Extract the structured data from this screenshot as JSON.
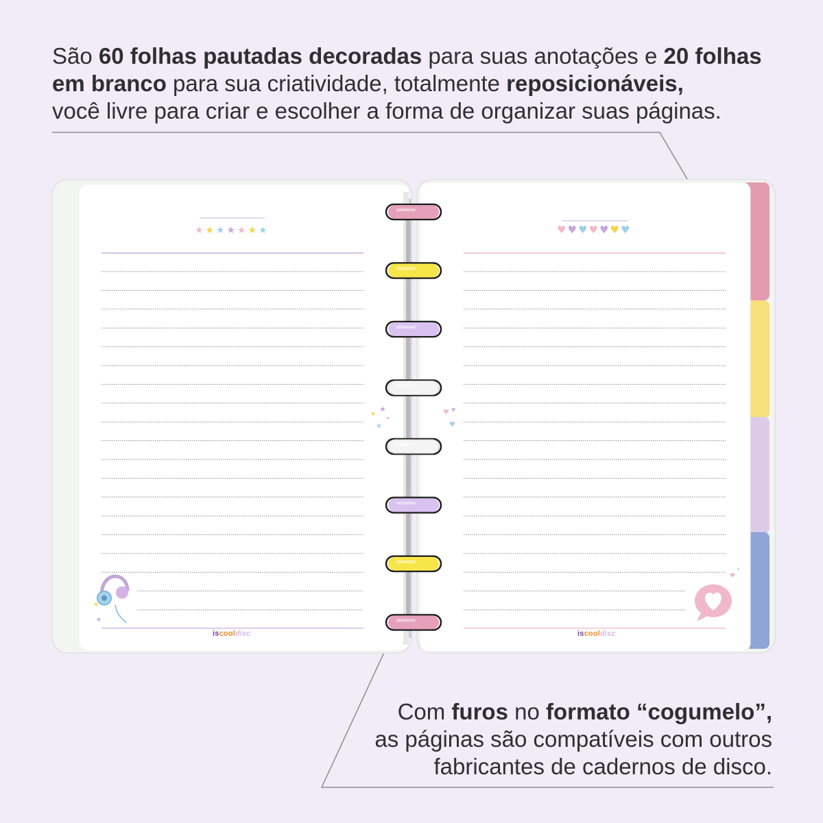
{
  "top_caption": {
    "line1": [
      {
        "text": "São ",
        "bold": false
      },
      {
        "text": "60 folhas pautadas decoradas",
        "bold": true
      },
      {
        "text": " para suas anotações e ",
        "bold": false
      },
      {
        "text": "20 folhas",
        "bold": true
      }
    ],
    "line2": [
      {
        "text": "em branco",
        "bold": true
      },
      {
        "text": " para sua criatividade, totalmente ",
        "bold": false
      },
      {
        "text": "reposicionáveis,",
        "bold": true
      }
    ],
    "line3": [
      {
        "text": "você livre para criar e escolher a forma de organizar suas páginas.",
        "bold": false
      }
    ]
  },
  "bottom_caption": {
    "line1": [
      {
        "text": "Com ",
        "bold": false
      },
      {
        "text": "furos",
        "bold": true
      },
      {
        "text": " no ",
        "bold": false
      },
      {
        "text": "formato “cogumelo”,",
        "bold": true
      }
    ],
    "line2": [
      {
        "text": "as páginas são compatíveis com outros",
        "bold": false
      }
    ],
    "line3": [
      {
        "text": "fabricantes de cadernos de disco.",
        "bold": false
      }
    ]
  },
  "brand_logo": {
    "is": "is",
    "cool": "cool",
    "disc": "disc"
  },
  "colors": {
    "background": "#f1ecf8",
    "callout_dot": "#e0819f",
    "callout_line": "#8c8c8c",
    "disc_pink": "#e6a0b9",
    "disc_yellow": "#f7e64a",
    "disc_purple": "#d9c2ef",
    "disc_white": "#f4f4f4",
    "tab_pink": "#e39bb0",
    "tab_yellow": "#f7e07c",
    "tab_lilac": "#dccbe6",
    "tab_blue": "#8fa4d8"
  },
  "rings": [
    "pink",
    "yellow",
    "purple",
    "white",
    "white",
    "purple",
    "yellow",
    "pink"
  ],
  "tabs": [
    "pink",
    "yellow",
    "lilac",
    "blue"
  ],
  "icons": {
    "left_header": "stars-icon",
    "right_header": "hearts-icon",
    "left_footer": "headphones-icon",
    "right_footer": "heart-speech-bubble-icon"
  }
}
